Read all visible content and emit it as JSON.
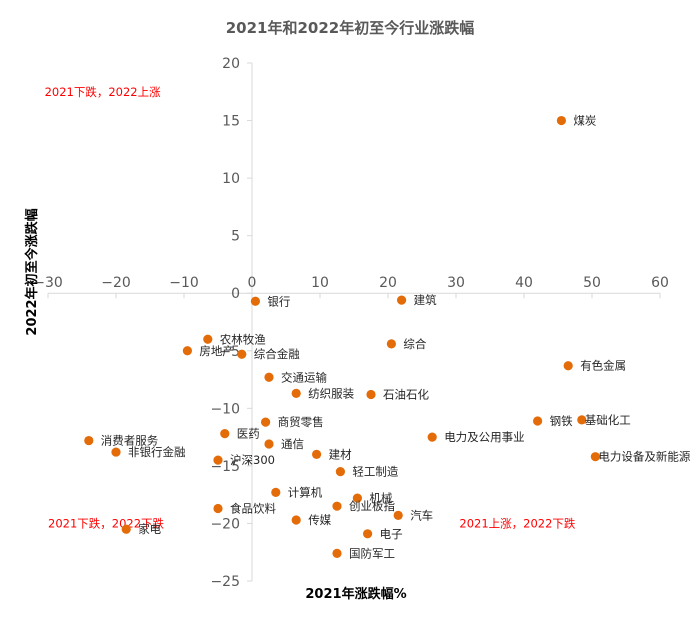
{
  "chart_data": {
    "type": "scatter",
    "title": "2021年和2022年初至今行业涨跌幅",
    "xlabel": "2021年涨跌幅%",
    "ylabel": "2022年初至今涨跌幅",
    "xlim": [
      -30,
      60
    ],
    "ylim": [
      -25,
      20
    ],
    "xticks": [
      -30,
      -20,
      -10,
      0,
      10,
      20,
      30,
      40,
      50,
      60
    ],
    "yticks": [
      20,
      15,
      10,
      5,
      0,
      -5,
      -10,
      -15,
      -20,
      -25
    ],
    "grid": false,
    "legend": "none",
    "colors": {
      "marker": "#E36C09",
      "quadrant_text": "#FF0000",
      "axis": "#D9D9D9",
      "text": "#595959"
    },
    "points": [
      {
        "label": "煤炭",
        "x": 45.5,
        "y": 15.0
      },
      {
        "label": "银行",
        "x": 0.5,
        "y": -0.7
      },
      {
        "label": "建筑",
        "x": 22.0,
        "y": -0.6
      },
      {
        "label": "农林牧渔",
        "x": -6.5,
        "y": -4.0
      },
      {
        "label": "综合",
        "x": 20.5,
        "y": -4.4
      },
      {
        "label": "房地产",
        "x": -9.5,
        "y": -5.0
      },
      {
        "label": "综合金融",
        "x": -1.5,
        "y": -5.3
      },
      {
        "label": "有色金属",
        "x": 46.5,
        "y": -6.3
      },
      {
        "label": "交通运输",
        "x": 2.5,
        "y": -7.3
      },
      {
        "label": "纺织服装",
        "x": 6.5,
        "y": -8.7
      },
      {
        "label": "石油石化",
        "x": 17.5,
        "y": -8.8
      },
      {
        "label": "钢铁",
        "x": 42.0,
        "y": -11.1
      },
      {
        "label": "基础化工",
        "x": 48.5,
        "y": -11.0
      },
      {
        "label": "商贸零售",
        "x": 2.0,
        "y": -11.2
      },
      {
        "label": "医药",
        "x": -4.0,
        "y": -12.2
      },
      {
        "label": "电力及公用事业",
        "x": 26.5,
        "y": -12.5
      },
      {
        "label": "消费者服务",
        "x": -24.0,
        "y": -12.8
      },
      {
        "label": "通信",
        "x": 2.5,
        "y": -13.1
      },
      {
        "label": "非银行金融",
        "x": -20.0,
        "y": -13.8
      },
      {
        "label": "建材",
        "x": 9.5,
        "y": -14.0
      },
      {
        "label": "电力设备及新能源",
        "x": 50.5,
        "y": -14.2
      },
      {
        "label": "沪深300",
        "x": -5.0,
        "y": -14.5
      },
      {
        "label": "轻工制造",
        "x": 13.0,
        "y": -15.5
      },
      {
        "label": "计算机",
        "x": 3.5,
        "y": -17.3
      },
      {
        "label": "机械",
        "x": 15.5,
        "y": -17.8
      },
      {
        "label": "食品饮料",
        "x": -5.0,
        "y": -18.7
      },
      {
        "label": "创业板指",
        "x": 12.5,
        "y": -18.5
      },
      {
        "label": "汽车",
        "x": 21.5,
        "y": -19.3
      },
      {
        "label": "传媒",
        "x": 6.5,
        "y": -19.7
      },
      {
        "label": "家电",
        "x": -18.5,
        "y": -20.5
      },
      {
        "label": "电子",
        "x": 17.0,
        "y": -20.9
      },
      {
        "label": "国防军工",
        "x": 12.5,
        "y": -22.6
      }
    ],
    "annotations": [
      {
        "text": "2021下跌，2022上涨",
        "x": -30.5,
        "y": 17.5
      },
      {
        "text": "2021下跌，2022下跌",
        "x": -30,
        "y": -20
      },
      {
        "text": "2021上涨，2022下跌",
        "x": 30.5,
        "y": -20
      }
    ]
  }
}
